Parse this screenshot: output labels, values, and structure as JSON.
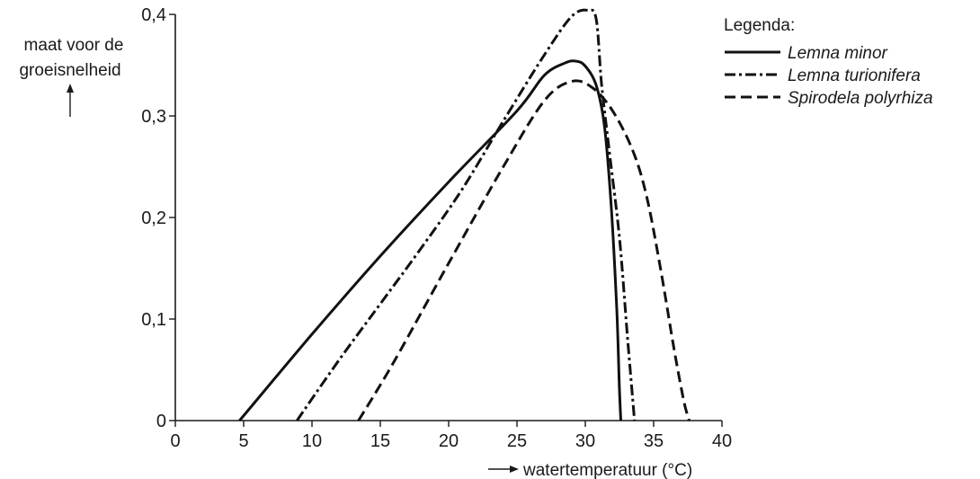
{
  "chart_data": {
    "type": "line",
    "title": "",
    "ylabel": "maat voor de groeisnelheid",
    "xlabel": "watertemperatuur (°C)",
    "xlim": [
      0,
      40
    ],
    "ylim": [
      0,
      0.4
    ],
    "xticks": [
      0,
      5,
      10,
      15,
      20,
      25,
      30,
      35,
      40
    ],
    "xtick_labels": [
      "0",
      "5",
      "10",
      "15",
      "20",
      "25",
      "30",
      "35",
      "40"
    ],
    "yticks": [
      0,
      0.1,
      0.2,
      0.3,
      0.4
    ],
    "ytick_labels": [
      "0",
      "0,1",
      "0,2",
      "0,3",
      "0,4"
    ],
    "grid": false,
    "legend": {
      "title": "Legenda:",
      "position": "top-right"
    },
    "series": [
      {
        "name": "Lemna minor",
        "line_style": "solid",
        "x": [
          4.7,
          10,
          15,
          20,
          25,
          27,
          28.5,
          29.3,
          30,
          30.8,
          31.4,
          31.9,
          32.3,
          32.5,
          32.6
        ],
        "y": [
          0,
          0.085,
          0.162,
          0.235,
          0.305,
          0.34,
          0.352,
          0.354,
          0.349,
          0.33,
          0.29,
          0.21,
          0.11,
          0.03,
          0
        ]
      },
      {
        "name": "Lemna turionifera",
        "line_style": "dash-dot",
        "x": [
          8.9,
          12,
          15,
          18,
          21,
          24,
          27,
          29,
          30.2,
          30.8,
          31.2,
          31.8,
          32.5,
          33.1,
          33.6
        ],
        "y": [
          0,
          0.06,
          0.115,
          0.17,
          0.228,
          0.295,
          0.36,
          0.398,
          0.404,
          0.395,
          0.33,
          0.26,
          0.18,
          0.08,
          0
        ]
      },
      {
        "name": "Spirodela polyrhiza",
        "line_style": "dashed",
        "x": [
          13.4,
          16,
          20,
          24,
          27,
          29,
          30.5,
          32,
          33.5,
          34.5,
          35.5,
          36.5,
          37.2,
          37.6
        ],
        "y": [
          0,
          0.058,
          0.155,
          0.25,
          0.315,
          0.334,
          0.328,
          0.305,
          0.265,
          0.22,
          0.15,
          0.07,
          0.02,
          0
        ]
      }
    ]
  }
}
